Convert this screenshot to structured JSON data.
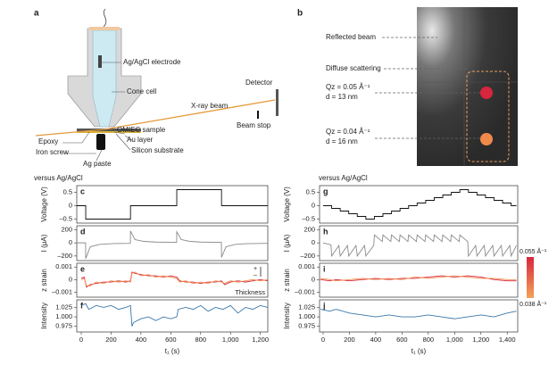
{
  "panel_a": {
    "label": "a",
    "electrode": "Ag/AgCl electrode",
    "cone": "Cone cell",
    "beam": "X-ray beam",
    "detector": "Detector",
    "sample": "OMIEC sample",
    "beam_stop": "Beam stop",
    "epoxy": "Epoxy",
    "au": "Au layer",
    "screw": "Iron screw",
    "substrate": "Silicon substrate",
    "paste": "Ag paste"
  },
  "panel_b": {
    "label": "b",
    "reflected": "Reflected beam",
    "diffuse": "Diffuse scattering",
    "peak_1": {
      "q": "Qz = 0.05 Å⁻¹",
      "d": "d = 13 nm"
    },
    "peak_2": {
      "q": "Qz = 0.04 Å⁻¹",
      "d": "d = 16 nm"
    }
  },
  "left_caption": "versus Ag/AgCl",
  "right_caption": "versus Ag/AgCl",
  "chart_data": [
    {
      "type": "line",
      "panel_label": "c",
      "ylabel": "Voltage (V)",
      "xlim": [
        -30,
        1250
      ],
      "ylim": [
        -0.65,
        0.75
      ],
      "yticks": [
        0.5,
        0,
        {
          "value": -0.5,
          "label": "–0.5"
        }
      ],
      "series": [
        {
          "color": "#111111",
          "x": [
            -30,
            30,
            30,
            330,
            330,
            640,
            640,
            940,
            940,
            1250
          ],
          "values": [
            0,
            0,
            -0.5,
            -0.5,
            0,
            0,
            0.6,
            0.6,
            0,
            0
          ]
        }
      ]
    },
    {
      "type": "line",
      "panel_label": "d",
      "ylabel": "I (μA)",
      "xlim": [
        -30,
        1250
      ],
      "ylim": [
        -270,
        260
      ],
      "yticks": [
        200,
        0,
        {
          "value": -200,
          "label": "–200"
        }
      ],
      "series": [
        {
          "color": "#8a8a8a",
          "x": [
            -30,
            29,
            30,
            60,
            120,
            200,
            329,
            330,
            360,
            420,
            500,
            639,
            640,
            670,
            730,
            800,
            939,
            940,
            970,
            1030,
            1100,
            1250
          ],
          "values": [
            0,
            0,
            -240,
            -60,
            -25,
            -12,
            -8,
            180,
            50,
            22,
            12,
            8,
            170,
            50,
            22,
            12,
            8,
            -220,
            -60,
            -25,
            -12,
            -8
          ]
        }
      ]
    },
    {
      "type": "line",
      "panel_label": "e",
      "ylabel": "z strain",
      "xlim": [
        -30,
        1250
      ],
      "ylim": [
        -0.0014,
        0.0013
      ],
      "yticks": [
        0.001,
        0,
        {
          "value": -0.001,
          "label": "–0.001"
        }
      ],
      "annotation": "Thickness",
      "sign_labels": [
        "+",
        "–"
      ],
      "series": [
        {
          "color": "#d7263d",
          "x": [
            0,
            20,
            35,
            60,
            100,
            150,
            200,
            250,
            300,
            330,
            340,
            360,
            400,
            450,
            500,
            550,
            600,
            640,
            660,
            700,
            750,
            800,
            850,
            900,
            940,
            960,
            1000,
            1050,
            1100,
            1150,
            1200,
            1250
          ],
          "values": [
            0.0001,
            0.0002,
            -0.0006,
            -0.0004,
            -0.0003,
            -0.0002,
            -0.0002,
            -0.0001,
            -0.0002,
            -0.0001,
            0.0006,
            0.0005,
            0.0004,
            0.0003,
            0.0003,
            0.0002,
            0.0003,
            0.0002,
            -0.0001,
            -0.0002,
            -0.0002,
            -0.0003,
            -0.0002,
            -0.0002,
            -0.0001,
            -0.0004,
            -0.0002,
            -0.0001,
            -0.0002,
            -0.0001,
            0,
            -0.0001
          ]
        },
        {
          "color": "#f08a4b",
          "x": [
            0,
            20,
            35,
            60,
            100,
            150,
            200,
            250,
            300,
            330,
            340,
            360,
            400,
            450,
            500,
            550,
            600,
            640,
            660,
            700,
            750,
            800,
            850,
            900,
            940,
            960,
            1000,
            1050,
            1100,
            1150,
            1200,
            1250
          ],
          "values": [
            0,
            0.0001,
            -0.0005,
            -0.0005,
            -0.0002,
            -0.0003,
            -0.0001,
            -0.0002,
            -0.0001,
            -0.0002,
            0.0005,
            0.0006,
            0.0003,
            0.0004,
            0.0002,
            0.0003,
            0.0002,
            0.0001,
            -0.0002,
            -0.0001,
            -0.0003,
            -0.0002,
            -0.0003,
            -0.0001,
            -0.0002,
            -0.0003,
            -0.0001,
            -0.0002,
            -0.0001,
            0,
            -0.0001,
            0
          ]
        }
      ]
    },
    {
      "type": "line",
      "panel_label": "f",
      "ylabel": "Intensity",
      "xlabel": "t₁ (s)",
      "xlim": [
        -30,
        1250
      ],
      "ylim": [
        0.96,
        1.045
      ],
      "yticks": [
        1.025,
        {
          "value": 1,
          "label": "1.000"
        },
        0.975
      ],
      "xticks": [
        0,
        200,
        400,
        600,
        800,
        {
          "value": 1000,
          "label": "1,000"
        },
        {
          "value": 1200,
          "label": "1,200"
        }
      ],
      "series": [
        {
          "color": "#3a77a8",
          "x": [
            0,
            30,
            50,
            100,
            150,
            200,
            250,
            300,
            330,
            340,
            350,
            400,
            450,
            500,
            550,
            600,
            640,
            650,
            700,
            750,
            800,
            850,
            900,
            950,
            1000,
            1050,
            1100,
            1150,
            1200,
            1250
          ],
          "values": [
            1.03,
            1.035,
            1.02,
            1.03,
            1.025,
            1.03,
            1.02,
            1.025,
            1.03,
            0.975,
            0.985,
            0.995,
            1.0,
            0.99,
            1.0,
            0.995,
            1.0,
            1.02,
            1.025,
            1.02,
            1.03,
            1.015,
            1.025,
            1.02,
            1.03,
            1.01,
            1.025,
            1.02,
            1.03,
            1.025
          ]
        }
      ]
    },
    {
      "type": "line",
      "panel_label": "g",
      "ylabel": "Voltage (V)",
      "xlim": [
        -27,
        1480
      ],
      "ylim": [
        -0.65,
        0.75
      ],
      "yticks": [
        0.5,
        0,
        {
          "value": -0.5,
          "label": "–0.5"
        }
      ],
      "series": [
        {
          "color": "#111111",
          "x": [
            0,
            65,
            65,
            130,
            130,
            195,
            195,
            260,
            260,
            325,
            325,
            390,
            390,
            455,
            455,
            520,
            520,
            585,
            585,
            650,
            650,
            715,
            715,
            780,
            780,
            845,
            845,
            910,
            910,
            975,
            975,
            1040,
            1040,
            1105,
            1105,
            1170,
            1170,
            1235,
            1235,
            1300,
            1300,
            1365,
            1365,
            1430,
            1430,
            1470
          ],
          "values": [
            0,
            0,
            -0.1,
            -0.1,
            -0.2,
            -0.2,
            -0.3,
            -0.3,
            -0.4,
            -0.4,
            -0.5,
            -0.5,
            -0.4,
            -0.4,
            -0.3,
            -0.3,
            -0.2,
            -0.2,
            -0.1,
            -0.1,
            0,
            0,
            0.1,
            0.1,
            0.2,
            0.2,
            0.3,
            0.3,
            0.4,
            0.4,
            0.5,
            0.5,
            0.6,
            0.6,
            0.5,
            0.5,
            0.4,
            0.4,
            0.3,
            0.3,
            0.2,
            0.2,
            0.1,
            0.1,
            0,
            0
          ]
        }
      ]
    },
    {
      "type": "line",
      "panel_label": "h",
      "ylabel": "I (μA)",
      "xlim": [
        -27,
        1480
      ],
      "ylim": [
        -270,
        260
      ],
      "yticks": [
        200,
        0,
        {
          "value": -200,
          "label": "–200"
        }
      ],
      "series": [
        {
          "color": "#8a8a8a",
          "x": [
            0,
            60,
            65,
            120,
            130,
            185,
            195,
            250,
            260,
            315,
            325,
            385,
            390,
            450,
            455,
            515,
            520,
            580,
            585,
            645,
            650,
            710,
            715,
            775,
            780,
            840,
            845,
            905,
            910,
            970,
            975,
            1035,
            1040,
            1100,
            1105,
            1160,
            1170,
            1225,
            1235,
            1290,
            1300,
            1355,
            1365,
            1420,
            1430,
            1470
          ],
          "values": [
            0,
            -30,
            -200,
            -40,
            -200,
            -40,
            -200,
            -40,
            -200,
            -40,
            -200,
            -40,
            120,
            20,
            120,
            20,
            120,
            20,
            120,
            20,
            120,
            20,
            120,
            20,
            120,
            20,
            120,
            20,
            120,
            20,
            120,
            20,
            120,
            20,
            -200,
            -40,
            -200,
            -40,
            -200,
            -40,
            -200,
            -40,
            -200,
            -40,
            -200,
            -40
          ]
        }
      ]
    },
    {
      "type": "line",
      "panel_label": "i",
      "ylabel": "z strain",
      "xlim": [
        -27,
        1480
      ],
      "ylim": [
        -0.0014,
        0.0013
      ],
      "yticks": [
        0.001,
        0,
        {
          "value": -0.001,
          "label": "–0.001"
        }
      ],
      "series": [
        {
          "name": "0.055 Å⁻¹",
          "color": "#d7263d",
          "x": [
            -20,
            50,
            100,
            200,
            300,
            400,
            500,
            600,
            700,
            800,
            900,
            1000,
            1100,
            1200,
            1300,
            1400,
            1470
          ],
          "values": [
            0,
            -0.0001,
            0,
            -0.0001,
            0,
            0.0001,
            0,
            0.0001,
            0.0001,
            0.0002,
            0.0003,
            0.0002,
            0.0003,
            0.0002,
            0,
            -0.0001,
            -0.0001
          ]
        },
        {
          "name": "0.038 Å⁻¹",
          "color": "#f08a4b",
          "x": [
            -20,
            50,
            100,
            200,
            300,
            400,
            500,
            600,
            700,
            800,
            900,
            1000,
            1100,
            1200,
            1300,
            1400,
            1470
          ],
          "values": [
            0.0001,
            0,
            -0.0001,
            0,
            0.0001,
            0,
            0.0001,
            0,
            0.0002,
            0.0001,
            0.0002,
            0.0003,
            0.0002,
            0.0001,
            0.0001,
            0,
            0
          ]
        }
      ]
    },
    {
      "type": "line",
      "panel_label": "j",
      "ylabel": "Intensity",
      "xlabel": "t₁ (s)",
      "xlim": [
        -27,
        1480
      ],
      "ylim": [
        0.96,
        1.045
      ],
      "yticks": [
        1.025,
        {
          "value": 1,
          "label": "1.000"
        },
        0.975
      ],
      "xticks": [
        0,
        200,
        400,
        600,
        800,
        {
          "value": 1000,
          "label": "1,000"
        },
        {
          "value": 1200,
          "label": "1,200"
        },
        {
          "value": 1400,
          "label": "1,400"
        }
      ],
      "series": [
        {
          "color": "#3a77a8",
          "x": [
            -20,
            50,
            100,
            200,
            300,
            400,
            500,
            600,
            700,
            800,
            900,
            1000,
            1100,
            1200,
            1300,
            1400,
            1470
          ],
          "values": [
            1.02,
            1.015,
            1.02,
            1.01,
            1.005,
            1.0,
            1.005,
            1.0,
            1.0,
            1.005,
            1.0,
            0.995,
            1.0,
            1.005,
            1.0,
            1.01,
            1.015
          ]
        }
      ]
    }
  ]
}
